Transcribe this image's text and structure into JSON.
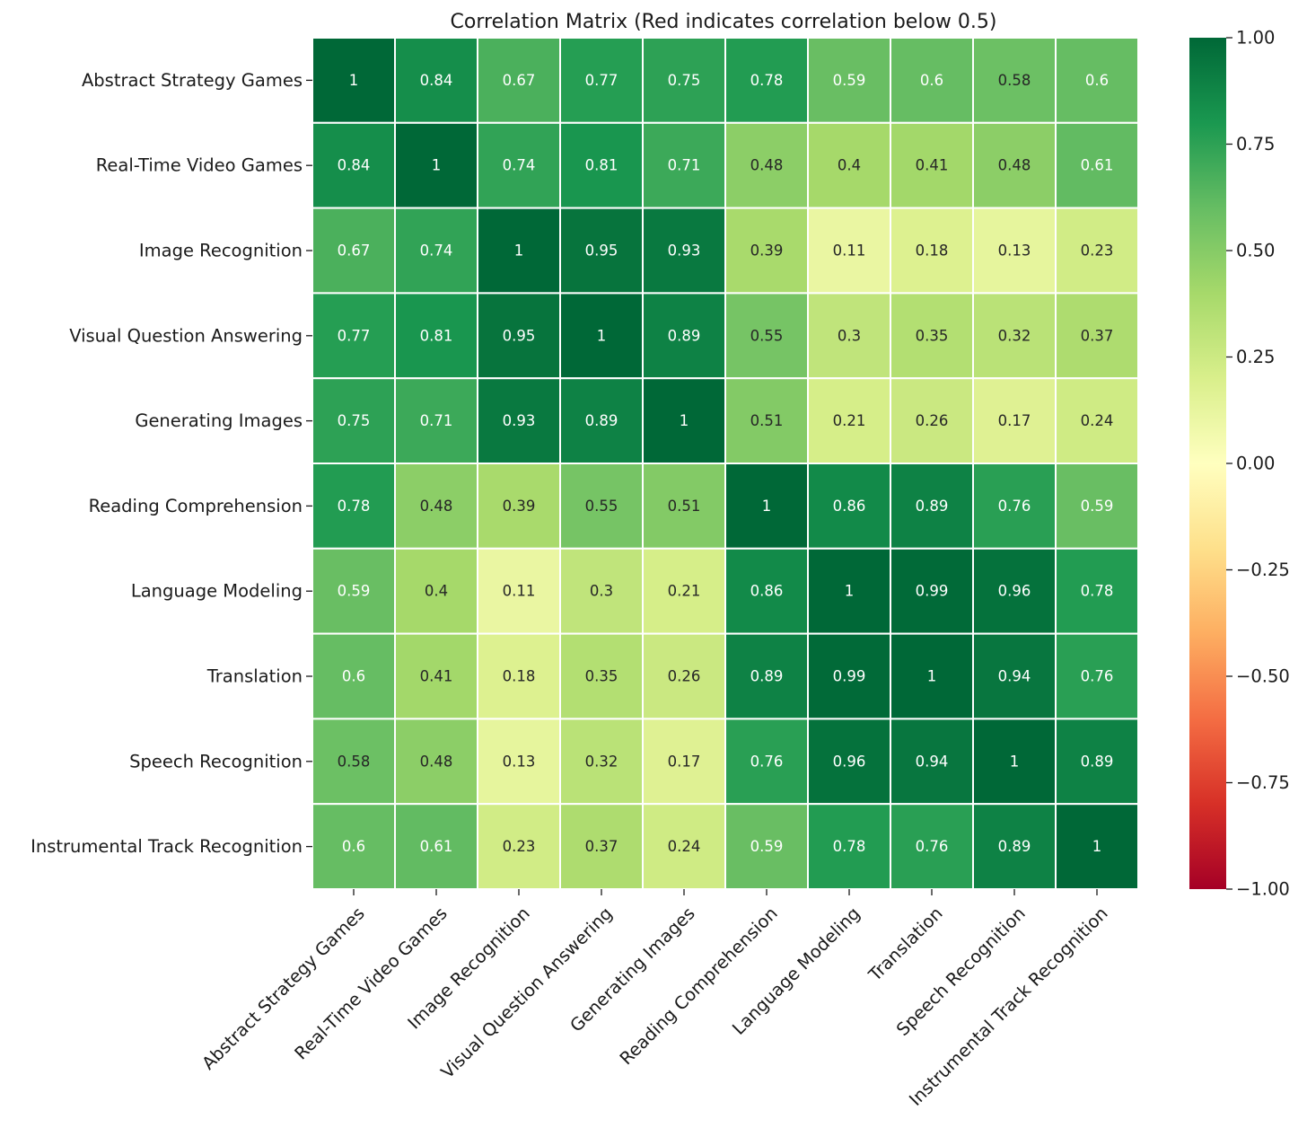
{
  "chart_data": {
    "type": "heatmap",
    "title": "Correlation Matrix (Red indicates correlation below 0.5)",
    "xlabel": "",
    "ylabel": "",
    "rows": [
      "Abstract Strategy Games",
      "Real-Time Video Games",
      "Image Recognition",
      "Visual Question Answering",
      "Generating Images",
      "Reading Comprehension",
      "Language Modeling",
      "Translation",
      "Speech Recognition",
      "Instrumental Track Recognition"
    ],
    "columns": [
      "Abstract Strategy Games",
      "Real-Time Video Games",
      "Image Recognition",
      "Visual Question Answering",
      "Generating Images",
      "Reading Comprehension",
      "Language Modeling",
      "Translation",
      "Speech Recognition",
      "Instrumental Track Recognition"
    ],
    "values": [
      [
        1,
        0.84,
        0.67,
        0.77,
        0.75,
        0.78,
        0.59,
        0.6,
        0.58,
        0.6
      ],
      [
        0.84,
        1,
        0.74,
        0.81,
        0.71,
        0.48,
        0.4,
        0.41,
        0.48,
        0.61
      ],
      [
        0.67,
        0.74,
        1,
        0.95,
        0.93,
        0.39,
        0.11,
        0.18,
        0.13,
        0.23
      ],
      [
        0.77,
        0.81,
        0.95,
        1,
        0.89,
        0.55,
        0.3,
        0.35,
        0.32,
        0.37
      ],
      [
        0.75,
        0.71,
        0.93,
        0.89,
        1,
        0.51,
        0.21,
        0.26,
        0.17,
        0.24
      ],
      [
        0.78,
        0.48,
        0.39,
        0.55,
        0.51,
        1,
        0.86,
        0.89,
        0.76,
        0.59
      ],
      [
        0.59,
        0.4,
        0.11,
        0.3,
        0.21,
        0.86,
        1,
        0.99,
        0.96,
        0.78
      ],
      [
        0.6,
        0.41,
        0.18,
        0.35,
        0.26,
        0.89,
        0.99,
        1,
        0.94,
        0.76
      ],
      [
        0.58,
        0.48,
        0.13,
        0.32,
        0.17,
        0.76,
        0.96,
        0.94,
        1,
        0.89
      ],
      [
        0.6,
        0.61,
        0.23,
        0.37,
        0.24,
        0.59,
        0.78,
        0.76,
        0.89,
        1
      ]
    ],
    "annotations": [
      [
        "1",
        "0.84",
        "0.67",
        "0.77",
        "0.75",
        "0.78",
        "0.59",
        "0.6",
        "0.58",
        "0.6"
      ],
      [
        "0.84",
        "1",
        "0.74",
        "0.81",
        "0.71",
        "0.48",
        "0.4",
        "0.41",
        "0.48",
        "0.61"
      ],
      [
        "0.67",
        "0.74",
        "1",
        "0.95",
        "0.93",
        "0.39",
        "0.11",
        "0.18",
        "0.13",
        "0.23"
      ],
      [
        "0.77",
        "0.81",
        "0.95",
        "1",
        "0.89",
        "0.55",
        "0.3",
        "0.35",
        "0.32",
        "0.37"
      ],
      [
        "0.75",
        "0.71",
        "0.93",
        "0.89",
        "1",
        "0.51",
        "0.21",
        "0.26",
        "0.17",
        "0.24"
      ],
      [
        "0.78",
        "0.48",
        "0.39",
        "0.55",
        "0.51",
        "1",
        "0.86",
        "0.89",
        "0.76",
        "0.59"
      ],
      [
        "0.59",
        "0.4",
        "0.11",
        "0.3",
        "0.21",
        "0.86",
        "1",
        "0.99",
        "0.96",
        "0.78"
      ],
      [
        "0.6",
        "0.41",
        "0.18",
        "0.35",
        "0.26",
        "0.89",
        "0.99",
        "1",
        "0.94",
        "0.76"
      ],
      [
        "0.58",
        "0.48",
        "0.13",
        "0.32",
        "0.17",
        "0.76",
        "0.96",
        "0.94",
        "1",
        "0.89"
      ],
      [
        "0.6",
        "0.61",
        "0.23",
        "0.37",
        "0.24",
        "0.59",
        "0.78",
        "0.76",
        "0.89",
        "1"
      ]
    ],
    "colormap": "RdYlGn",
    "colormap_stops": [
      "#a50026",
      "#d73027",
      "#f46d43",
      "#fdae61",
      "#fee08b",
      "#ffffbf",
      "#d9ef8b",
      "#a6d96a",
      "#66bd63",
      "#1a9850",
      "#006837"
    ],
    "vmin": -1,
    "vmax": 1,
    "colorbar": {
      "ticks": [
        1,
        0.75,
        0.5,
        0.25,
        0,
        -0.25,
        -0.5,
        -0.75,
        -1
      ],
      "tick_labels": [
        "1.00",
        "0.75",
        "0.50",
        "0.25",
        "0.00",
        "−0.25",
        "−0.50",
        "−0.75",
        "−1.00"
      ]
    },
    "cell_text_colors": {
      "dark_text": "#262626",
      "light_text": "#ffffff"
    },
    "grid_line_color": "#ffffff"
  }
}
